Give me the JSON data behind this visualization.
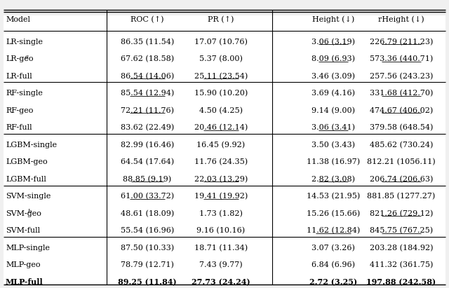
{
  "columns": [
    "Model",
    "ROC (↑)",
    "PR (↑)",
    "Height (↓)",
    "rHeight (↓)"
  ],
  "rows": [
    [
      "LR-single",
      "86.35 (11.54)",
      "17.07 (10.76)",
      "3.06 (3.19)",
      "226.79 (211.23)"
    ],
    [
      "LR-geo",
      "67.62 (18.58)",
      "5.37 (8.00)",
      "8.09 (6.93)",
      "573.36 (440.71)"
    ],
    [
      "LR-full",
      "86.54 (14.06)",
      "25.11 (23.54)",
      "3.46 (3.09)",
      "257.56 (243.23)"
    ],
    [
      "RF-single",
      "85.54 (12.94)",
      "15.90 (10.20)",
      "3.69 (4.16)",
      "331.68 (412.70)"
    ],
    [
      "RF-geo",
      "72.21 (11.76)",
      "4.50 (4.25)",
      "9.14 (9.00)",
      "474.67 (406.02)"
    ],
    [
      "RF-full",
      "83.62 (22.49)",
      "20.46 (12.14)",
      "3.06 (3.41)",
      "379.58 (648.54)"
    ],
    [
      "LGBM-single",
      "82.99 (16.46)",
      "16.45 (9.92)",
      "3.50 (3.43)",
      "485.62 (730.24)"
    ],
    [
      "LGBM-geo",
      "64.54 (17.64)",
      "11.76 (24.35)",
      "11.38 (16.97)",
      "812.21 (1056.11)"
    ],
    [
      "LGBM-full",
      "88.85 (9.19)",
      "22.03 (13.29)",
      "2.82 (3.08)",
      "206.74 (206.63)"
    ],
    [
      "SVM-single",
      "61.00 (33.72)",
      "19.41 (19.92)",
      "14.53 (21.95)",
      "881.85 (1277.27)"
    ],
    [
      "SVM-geo",
      "48.61 (18.09)",
      "1.73 (1.82)",
      "15.26 (15.66)",
      "821.26 (729.12)"
    ],
    [
      "SVM-full",
      "55.54 (16.96)",
      "9.16 (10.16)",
      "11.62 (12.84)",
      "845.75 (767.25)"
    ],
    [
      "MLP-single",
      "87.50 (10.33)",
      "18.71 (11.34)",
      "3.07 (3.26)",
      "203.28 (184.92)"
    ],
    [
      "MLP-geo",
      "78.79 (12.71)",
      "7.43 (9.77)",
      "6.84 (6.96)",
      "411.32 (361.75)"
    ],
    [
      "MLP-full",
      "89.25 (11.84)",
      "27.73 (24.24)",
      "2.72 (3.25)",
      "197.88 (242.58)"
    ]
  ],
  "superscripts": {
    "LR-geo": "a",
    "SVM-geo": "b"
  },
  "underline": [
    [
      false,
      false,
      true,
      true
    ],
    [
      false,
      false,
      true,
      true
    ],
    [
      true,
      true,
      false,
      false
    ],
    [
      true,
      false,
      false,
      true
    ],
    [
      true,
      false,
      false,
      true
    ],
    [
      false,
      true,
      true,
      false
    ],
    [
      false,
      false,
      false,
      false
    ],
    [
      false,
      false,
      false,
      false
    ],
    [
      true,
      true,
      true,
      true
    ],
    [
      true,
      true,
      false,
      false
    ],
    [
      false,
      false,
      false,
      true
    ],
    [
      false,
      false,
      true,
      true
    ],
    [
      false,
      false,
      false,
      false
    ],
    [
      false,
      false,
      false,
      false
    ],
    [
      true,
      true,
      true,
      true
    ]
  ],
  "bold_row": 14,
  "group_separators": [
    3,
    6,
    9,
    12
  ],
  "vsep_cols": [
    1,
    3
  ],
  "background_color": "#f0f0f0",
  "table_bg": "#ffffff",
  "font_size": 8.0
}
